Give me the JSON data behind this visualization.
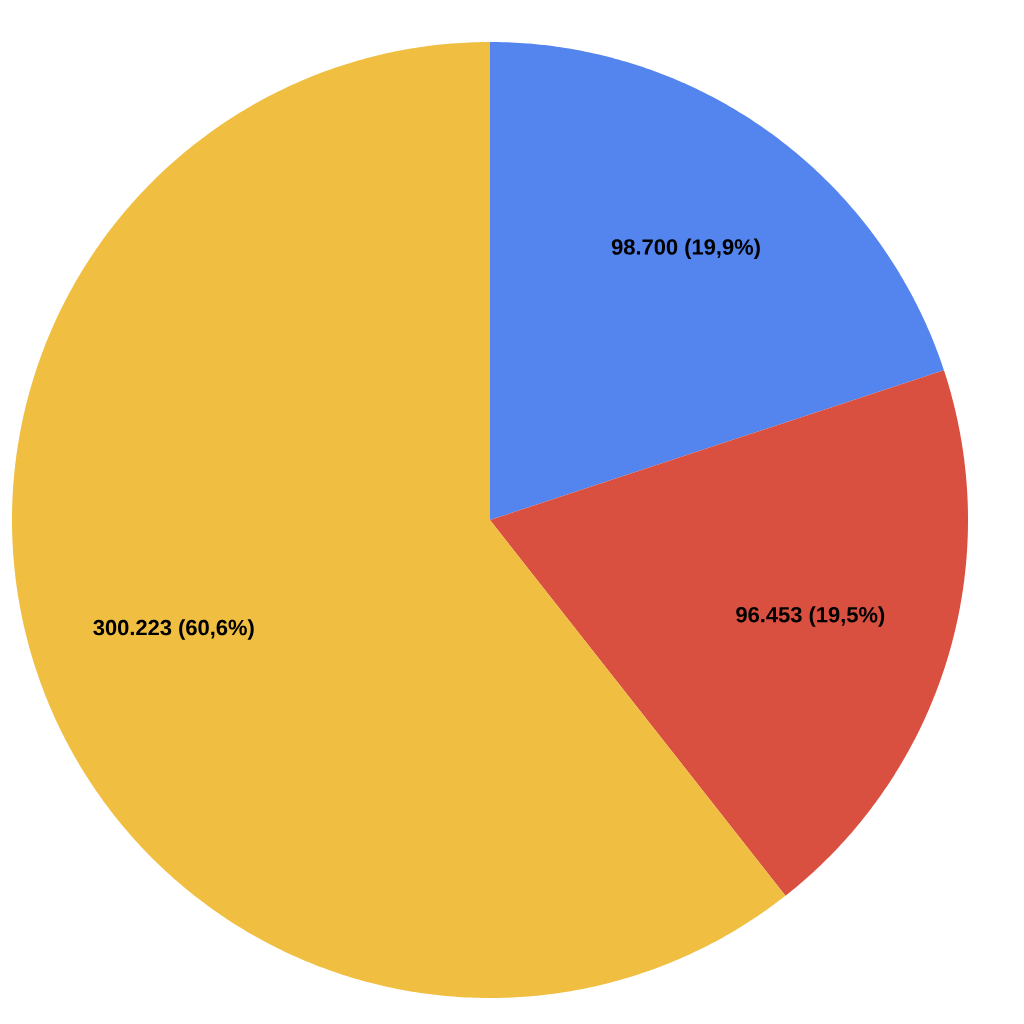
{
  "chart_data": {
    "type": "pie",
    "categories": [
      null,
      null,
      null
    ],
    "values": [
      98700,
      96453,
      300223
    ],
    "colors": [
      "#5484ed",
      "#d95040",
      "#f0bf41"
    ],
    "value_labels": [
      "98.700 (19,9%)",
      "96.453 (19,5%)",
      "300.223 (60,6%)"
    ]
  }
}
